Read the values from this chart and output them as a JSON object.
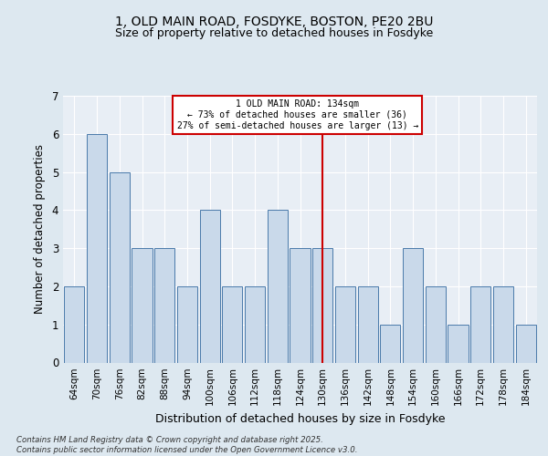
{
  "title_line1": "1, OLD MAIN ROAD, FOSDYKE, BOSTON, PE20 2BU",
  "title_line2": "Size of property relative to detached houses in Fosdyke",
  "xlabel": "Distribution of detached houses by size in Fosdyke",
  "ylabel": "Number of detached properties",
  "categories": [
    "64sqm",
    "70sqm",
    "76sqm",
    "82sqm",
    "88sqm",
    "94sqm",
    "100sqm",
    "106sqm",
    "112sqm",
    "118sqm",
    "124sqm",
    "130sqm",
    "136sqm",
    "142sqm",
    "148sqm",
    "154sqm",
    "160sqm",
    "166sqm",
    "172sqm",
    "178sqm",
    "184sqm"
  ],
  "values": [
    2,
    6,
    5,
    3,
    3,
    2,
    4,
    2,
    2,
    4,
    3,
    3,
    2,
    2,
    1,
    3,
    2,
    1,
    2,
    2,
    1
  ],
  "bar_color": "#c9d9ea",
  "bar_edge_color": "#4a7aaa",
  "vline_idx": 11,
  "vline_label": "1 OLD MAIN ROAD: 134sqm",
  "annotation_line2": "← 73% of detached houses are smaller (36)",
  "annotation_line3": "27% of semi-detached houses are larger (13) →",
  "annotation_box_color": "#cc0000",
  "ylim": [
    0,
    7
  ],
  "yticks": [
    0,
    1,
    2,
    3,
    4,
    5,
    6,
    7
  ],
  "footer": "Contains HM Land Registry data © Crown copyright and database right 2025.\nContains public sector information licensed under the Open Government Licence v3.0.",
  "bg_color": "#dde8f0",
  "plot_bg_color": "#e8eef5",
  "grid_color": "#ffffff",
  "title1_fontsize": 10,
  "title2_fontsize": 9
}
